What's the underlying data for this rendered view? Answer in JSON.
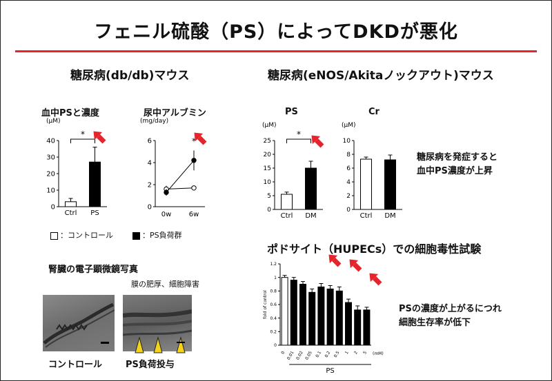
{
  "title": "フェニル硫酸（PS）によってDKDが悪化",
  "accent_color": "#e5242b",
  "left": {
    "heading": "糖尿病(db/db)マウス",
    "legend": {
      "control": "：コントロール",
      "ps": "：PS負荷群"
    },
    "em": {
      "heading": "腎臓の電子顕微鏡写真",
      "annotation": "膜の肥厚、細胞障害",
      "caption_control": "コントロール",
      "caption_ps": "PS負荷投与"
    }
  },
  "right": {
    "heading": "糖尿病(eNOS/Akitaノックアウト)マウス",
    "note_line1": "糖尿病を発症すると",
    "note_line2": "血中PS濃度が上昇",
    "podo_heading": "ポドサイト（HUPECs）での細胞毒性試験",
    "podo_note_line1": "PSの濃度が上がるにつれ",
    "podo_note_line2": "細胞生存率が低下"
  },
  "chart_data": [
    {
      "id": "blood_ps",
      "type": "bar",
      "title": "血中PSと濃度",
      "ylabel": "(μM)",
      "ylim": [
        0,
        40
      ],
      "yticks": [
        0,
        10,
        20,
        30,
        40
      ],
      "categories": [
        "Ctrl",
        "PS"
      ],
      "values": [
        3,
        27
      ],
      "errors": [
        2,
        9
      ],
      "fills": [
        "#ffffff",
        "#000000"
      ],
      "significance": "*"
    },
    {
      "id": "urine_albumin",
      "type": "line",
      "title": "尿中アルブミン",
      "ylabel": "(mg/day)",
      "ylim": [
        0,
        6
      ],
      "yticks": [
        0,
        2,
        4,
        6
      ],
      "categories": [
        "0w",
        "6w"
      ],
      "series": [
        {
          "values": [
            1.6,
            1.7
          ],
          "errors": [
            0.3,
            0.2
          ],
          "marker": "open"
        },
        {
          "values": [
            1.3,
            4.2
          ],
          "errors": [
            0.3,
            0.9
          ],
          "marker": "filled"
        }
      ],
      "significance": "*"
    },
    {
      "id": "enos_ps",
      "type": "bar",
      "title": "PS",
      "ylabel": "(μM)",
      "ylim": [
        0,
        25
      ],
      "yticks": [
        0,
        5,
        10,
        15,
        20,
        25
      ],
      "categories": [
        "Ctrl",
        "DM"
      ],
      "values": [
        5.5,
        15
      ],
      "errors": [
        0.8,
        2.5
      ],
      "fills": [
        "#ffffff",
        "#000000"
      ],
      "significance": "*"
    },
    {
      "id": "enos_cr",
      "type": "bar",
      "title": "Cr",
      "ylabel": "(μM)",
      "ylim": [
        0,
        10
      ],
      "yticks": [
        0,
        2,
        4,
        6,
        8,
        10
      ],
      "categories": [
        "Ctrl",
        "DM"
      ],
      "values": [
        7.3,
        7.2
      ],
      "errors": [
        0.3,
        0.7
      ],
      "fills": [
        "#ffffff",
        "#000000"
      ]
    },
    {
      "id": "podocyte_viability",
      "type": "bar",
      "title": "",
      "ylabel": "fold of control",
      "xlabel": "PS",
      "unit_label": "(mM)",
      "ylim": [
        0,
        1.2
      ],
      "yticks": [
        0,
        0.2,
        0.4,
        0.6,
        0.8,
        1.0,
        1.2
      ],
      "categories": [
        "0",
        "0.01",
        "0.02",
        "0.05",
        "0.1",
        "0.2",
        "0.5",
        "1",
        "2",
        "5"
      ],
      "values": [
        1.0,
        0.96,
        0.9,
        0.78,
        0.86,
        0.83,
        0.8,
        0.63,
        0.52,
        0.52
      ],
      "errors": [
        0.03,
        0.04,
        0.04,
        0.05,
        0.05,
        0.05,
        0.06,
        0.05,
        0.06,
        0.04
      ],
      "fills": [
        "#ffffff",
        "#000000",
        "#000000",
        "#000000",
        "#000000",
        "#000000",
        "#000000",
        "#000000",
        "#000000",
        "#000000"
      ]
    }
  ]
}
